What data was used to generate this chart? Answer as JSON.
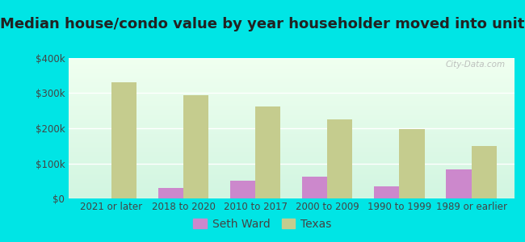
{
  "title": "Median house/condo value by year householder moved into unit",
  "categories": [
    "2021 or later",
    "2018 to 2020",
    "2010 to 2017",
    "2000 to 2009",
    "1990 to 1999",
    "1989 or earlier"
  ],
  "seth_ward": [
    0,
    30000,
    50000,
    62000,
    35000,
    82000
  ],
  "texas": [
    330000,
    295000,
    262000,
    225000,
    198000,
    150000
  ],
  "seth_ward_color": "#cc88cc",
  "texas_color": "#c5cc8e",
  "background_color": "#00e5e5",
  "ylim": [
    0,
    400000
  ],
  "yticks": [
    0,
    100000,
    200000,
    300000,
    400000
  ],
  "legend_seth_ward": "Seth Ward",
  "legend_texas": "Texas",
  "watermark": "City-Data.com",
  "title_fontsize": 13,
  "tick_fontsize": 8.5,
  "legend_fontsize": 10
}
